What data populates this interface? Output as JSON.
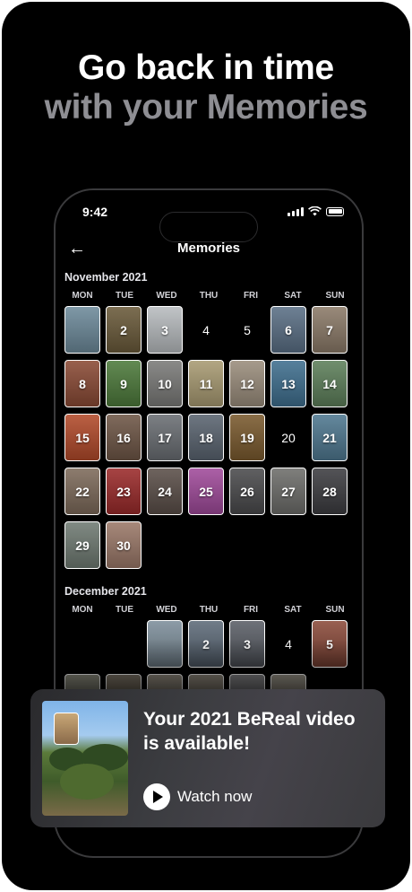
{
  "headline": {
    "line1": "Go back in time",
    "line2": "with your Memories"
  },
  "status": {
    "time": "9:42"
  },
  "nav": {
    "back_icon": "arrow-left-icon",
    "title": "Memories"
  },
  "weekdays": [
    "MON",
    "TUE",
    "WED",
    "THU",
    "FRI",
    "SAT",
    "SUN"
  ],
  "months": [
    {
      "label": "November 2021",
      "leading_blanks": 0,
      "days": [
        {
          "n": "",
          "photo": true,
          "color": "#6d8a9a"
        },
        {
          "n": "2",
          "photo": true,
          "color": "#6a5a3a"
        },
        {
          "n": "3",
          "photo": true,
          "color": "#b8bcbf"
        },
        {
          "n": "4",
          "photo": false
        },
        {
          "n": "5",
          "photo": false
        },
        {
          "n": "6",
          "photo": true,
          "color": "#5a6f85"
        },
        {
          "n": "7",
          "photo": true,
          "color": "#8b7a68"
        },
        {
          "n": "8",
          "photo": true,
          "color": "#8a4a35"
        },
        {
          "n": "9",
          "photo": true,
          "color": "#4d7a3b"
        },
        {
          "n": "10",
          "photo": true,
          "color": "#7a7a78"
        },
        {
          "n": "11",
          "photo": true,
          "color": "#a89a72"
        },
        {
          "n": "12",
          "photo": true,
          "color": "#9a8d7c"
        },
        {
          "n": "13",
          "photo": true,
          "color": "#3f6f8f"
        },
        {
          "n": "14",
          "photo": true,
          "color": "#5d7f5a"
        },
        {
          "n": "15",
          "photo": true,
          "color": "#b24a2a"
        },
        {
          "n": "16",
          "photo": true,
          "color": "#6e5646"
        },
        {
          "n": "17",
          "photo": true,
          "color": "#6a6e73"
        },
        {
          "n": "18",
          "photo": true,
          "color": "#5a6470"
        },
        {
          "n": "19",
          "photo": true,
          "color": "#7a5a2e"
        },
        {
          "n": "20",
          "photo": false
        },
        {
          "n": "21",
          "photo": true,
          "color": "#4f7890"
        },
        {
          "n": "22",
          "photo": true,
          "color": "#7d6a5a"
        },
        {
          "n": "23",
          "photo": true,
          "color": "#9a2a2a"
        },
        {
          "n": "24",
          "photo": true,
          "color": "#5a4e48"
        },
        {
          "n": "25",
          "photo": true,
          "color": "#a04a9a"
        },
        {
          "n": "26",
          "photo": true,
          "color": "#4a4a4c"
        },
        {
          "n": "27",
          "photo": true,
          "color": "#6d6d6a"
        },
        {
          "n": "28",
          "photo": true,
          "color": "#3c3c40"
        },
        {
          "n": "29",
          "photo": true,
          "color": "#6f7a72"
        },
        {
          "n": "30",
          "photo": true,
          "color": "#9a7868"
        }
      ]
    },
    {
      "label": "December 2021",
      "leading_blanks": 2,
      "days": [
        {
          "n": "",
          "photo": true,
          "color": "#7d8e9a"
        },
        {
          "n": "2",
          "photo": true,
          "color": "#5d6a78"
        },
        {
          "n": "3",
          "photo": true,
          "color": "#5a5e66"
        },
        {
          "n": "4",
          "photo": false
        },
        {
          "n": "5",
          "photo": true,
          "color": "#8a4a3a"
        },
        {
          "n": "",
          "photo": true,
          "color": "#7a7a6a"
        },
        {
          "n": "",
          "photo": true,
          "color": "#6a6050"
        },
        {
          "n": "",
          "photo": true,
          "color": "#80786a"
        },
        {
          "n": "",
          "photo": true,
          "color": "#7c7466"
        },
        {
          "n": "",
          "photo": true,
          "color": "#6f6f72"
        },
        {
          "n": "",
          "photo": true,
          "color": "#8a8476"
        }
      ]
    }
  ],
  "card": {
    "title": "Your 2021 BeReal video is available!",
    "action_label": "Watch now",
    "play_icon": "play-icon"
  }
}
